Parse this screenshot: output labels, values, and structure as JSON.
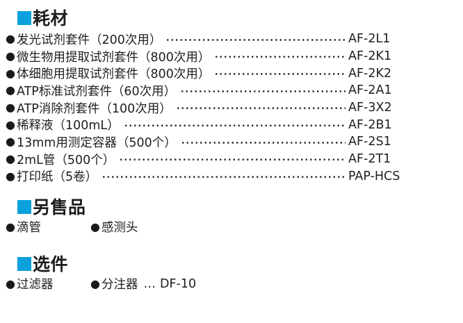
{
  "accent_color": "#0aa1dc",
  "text_color": "#1e1e1e",
  "bullet": "●",
  "sections": {
    "consumables": {
      "title": "耗材",
      "items": [
        {
          "label": "发光试剂套件（200次用）",
          "code": "AF-2L1"
        },
        {
          "label": "微生物用提取试剂套件（800次用）",
          "code": "AF-2K1"
        },
        {
          "label": "体细胞用提取试剂套件（800次用）",
          "code": "AF-2K2"
        },
        {
          "label": "ATP标准试剂套件（60次用）",
          "code": "AF-2A1"
        },
        {
          "label": "ATP消除剂套件（100次用）",
          "code": "AF-3X2"
        },
        {
          "label": "稀释液（100mL）",
          "code": "AF-2B1"
        },
        {
          "label": "13mm用测定容器（500个）",
          "code": "AF-2S1"
        },
        {
          "label": "2mL管（500个）",
          "code": "AF-2T1"
        },
        {
          "label": "打印纸（5卷）",
          "code": "PAP-HCS"
        }
      ]
    },
    "sold_separately": {
      "title": "另售品",
      "items": [
        {
          "label": "滴管"
        },
        {
          "label": "感测头"
        }
      ]
    },
    "options": {
      "title": "选件",
      "items": [
        {
          "label": "过滤器"
        },
        {
          "label": "分注器",
          "separator": "…",
          "code": "DF-10"
        }
      ]
    }
  }
}
